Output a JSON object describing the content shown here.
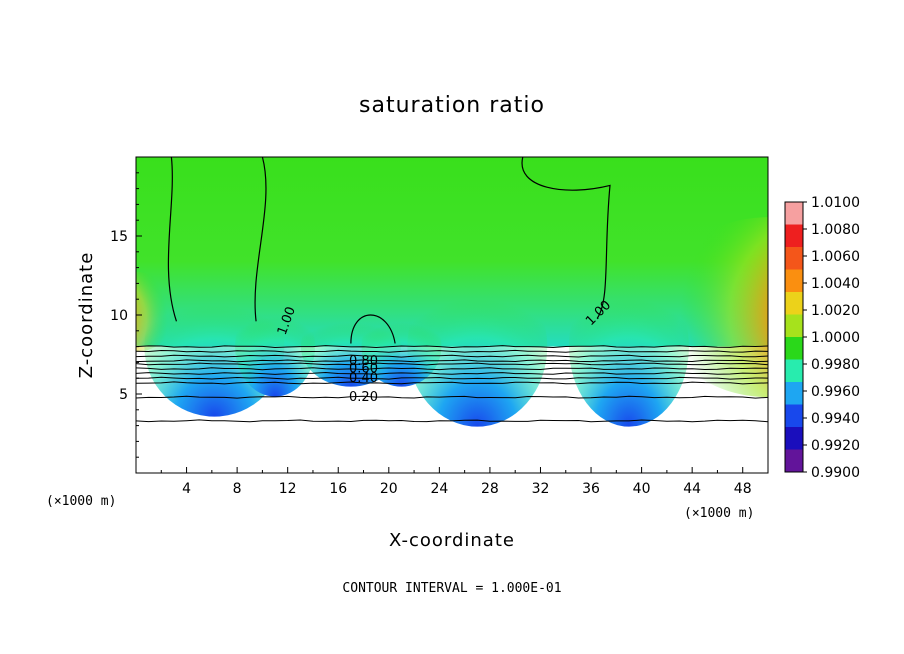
{
  "chart_data": {
    "type": "heatmap",
    "title": "saturation ratio",
    "xlabel": "X-coordinate",
    "ylabel": "Z-coordinate",
    "x_scale_note": "(×1000 m)",
    "z_scale_note": "(×1000 m)",
    "xlim": [
      0,
      50
    ],
    "ylim": [
      0,
      20
    ],
    "x_ticks": [
      4,
      8,
      12,
      16,
      20,
      24,
      28,
      32,
      36,
      40,
      44,
      48
    ],
    "y_ticks": [
      5,
      10,
      15
    ],
    "footer": "CONTOUR INTERVAL = 1.000E-01",
    "colorbar": {
      "min": 0.99,
      "max": 1.01,
      "labels": [
        "1.0100",
        "1.0080",
        "1.0060",
        "1.0040",
        "1.0020",
        "1.0000",
        "0.9980",
        "0.9960",
        "0.9940",
        "0.9920",
        "0.9900"
      ],
      "colors": [
        "#f6a0a0",
        "#ee1f1f",
        "#f4561a",
        "#fa8f10",
        "#ecd21a",
        "#a6e21c",
        "#2ad81a",
        "#28ecae",
        "#1ea6f2",
        "#1848ec",
        "#1a0ebc",
        "#62149a"
      ]
    },
    "contour_levels_labeled": [
      {
        "label": "0.20",
        "z": 4.8
      },
      {
        "label": "0.40",
        "z": 6.0
      },
      {
        "label": "0.60",
        "z": 6.6
      },
      {
        "label": "0.80",
        "z": 7.1
      },
      {
        "label": "1.00",
        "z": 10.2
      },
      {
        "label": "1.00",
        "z": 9.8
      }
    ],
    "contour_lines_z": [
      3.3,
      4.8,
      5.7,
      6.0,
      6.3,
      6.6,
      6.9,
      7.1,
      7.4,
      7.7,
      8.0
    ],
    "cloud_base_z": 8.0
  }
}
